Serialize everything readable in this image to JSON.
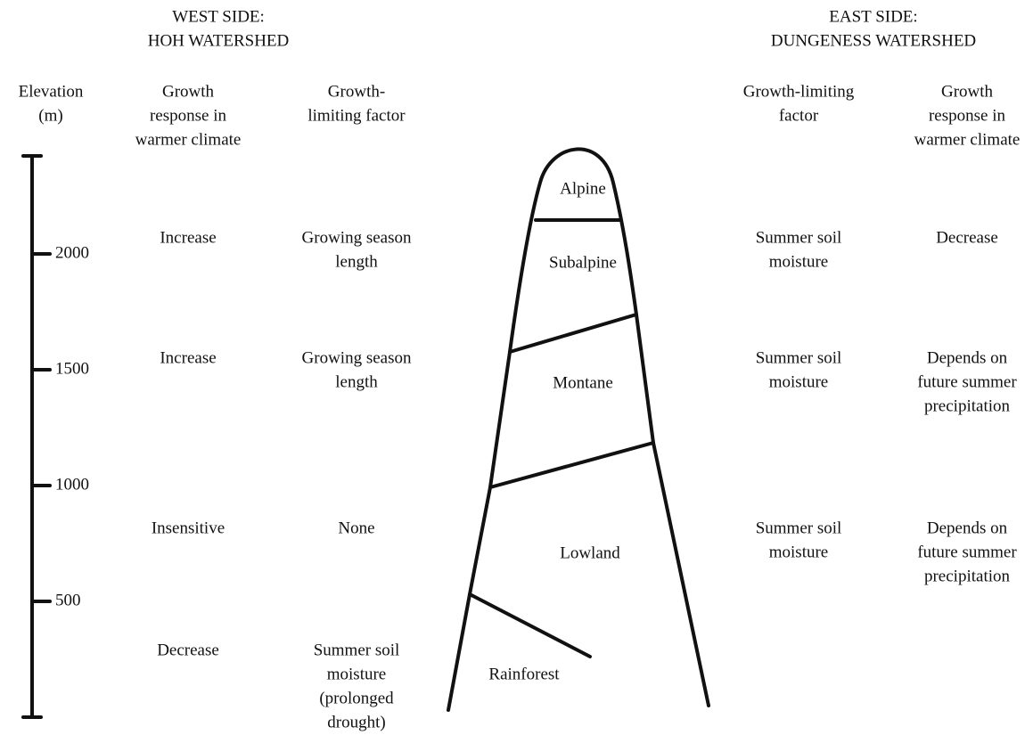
{
  "west_header": [
    "WEST SIDE:",
    "HOH WATERSHED"
  ],
  "east_header": [
    "EAST SIDE:",
    "DUNGENESS WATERSHED"
  ],
  "column_headers": {
    "elevation": [
      "Elevation",
      "(m)"
    ],
    "west_response": [
      "Growth",
      "response in",
      "warmer climate"
    ],
    "west_factor": [
      "Growth-",
      "limiting factor"
    ],
    "east_factor": [
      "Growth-limiting",
      "factor"
    ],
    "east_response": [
      "Growth",
      "response in",
      "warmer climate"
    ]
  },
  "elevation_ticks": [
    2000,
    1500,
    1000,
    500
  ],
  "zones": [
    "Alpine",
    "Subalpine",
    "Montane",
    "Lowland",
    "Rainforest"
  ],
  "west_rows": [
    {
      "response": [
        "Increase"
      ],
      "factor": [
        "Growing season",
        "length"
      ]
    },
    {
      "response": [
        "Increase"
      ],
      "factor": [
        "Growing season",
        "length"
      ]
    },
    {
      "response": [
        "Insensitive"
      ],
      "factor": [
        "None"
      ]
    },
    {
      "response": [
        "Decrease"
      ],
      "factor": [
        "Summer soil",
        "moisture",
        "(prolonged",
        "drought)"
      ]
    }
  ],
  "east_rows": [
    {
      "factor": [
        "Summer soil",
        "moisture"
      ],
      "response": [
        "Decrease"
      ]
    },
    {
      "factor": [
        "Summer soil",
        "moisture"
      ],
      "response": [
        "Depends on",
        "future summer",
        "precipitation"
      ]
    },
    {
      "factor": [
        "Summer soil",
        "moisture"
      ],
      "response": [
        "Depends on",
        "future summer",
        "precipitation"
      ]
    }
  ]
}
